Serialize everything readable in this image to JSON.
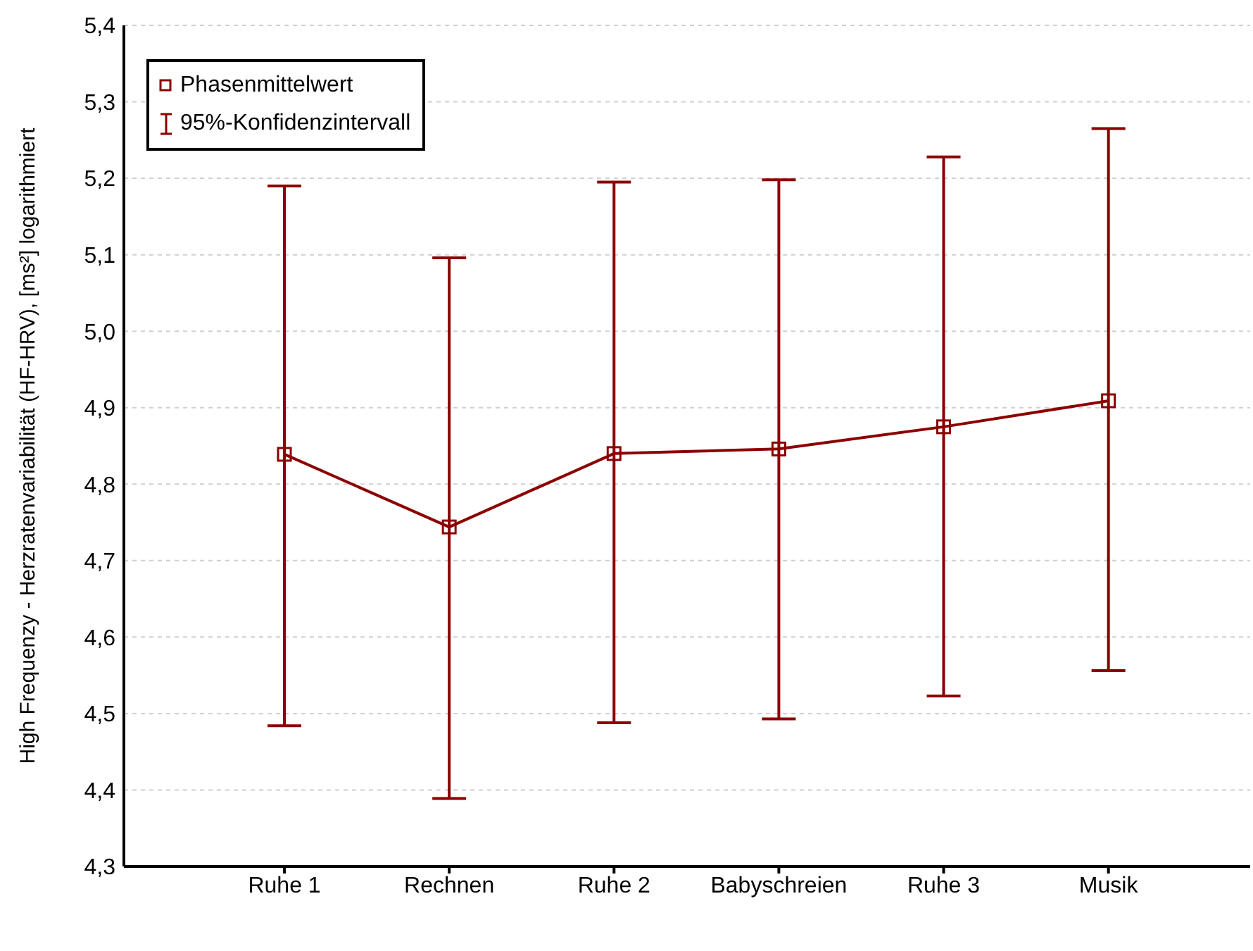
{
  "chart_data": {
    "type": "line",
    "ylabel": "High Frequenzy - Herzratenvariabilität (HF-HRV), [ms²] logarithmiert",
    "categories": [
      "Ruhe 1",
      "Rechnen",
      "Ruhe 2",
      "Babyschreien",
      "Ruhe 3",
      "Musik"
    ],
    "series": [
      {
        "name": "Phasenmittelwert",
        "color": "#8b0000",
        "values": [
          4.839,
          4.744,
          4.84,
          4.846,
          4.875,
          4.909
        ],
        "errors": [
          [
            4.484,
            5.19
          ],
          [
            4.389,
            5.096
          ],
          [
            4.488,
            5.195
          ],
          [
            4.493,
            5.198
          ],
          [
            4.523,
            5.228
          ],
          [
            4.556,
            5.265
          ]
        ]
      }
    ],
    "annotations": [
      "95%-Konfidenzintervall"
    ],
    "ylim": [
      4.3,
      5.4
    ],
    "yticks": [
      {
        "value": 4.3,
        "label": "4,3"
      },
      {
        "value": 4.4,
        "label": "4,4"
      },
      {
        "value": 4.5,
        "label": "4,5"
      },
      {
        "value": 4.6,
        "label": "4,6"
      },
      {
        "value": 4.7,
        "label": "4,7"
      },
      {
        "value": 4.8,
        "label": "4,8"
      },
      {
        "value": 4.9,
        "label": "4,9"
      },
      {
        "value": 5.0,
        "label": "5,0"
      },
      {
        "value": 5.1,
        "label": "5,1"
      },
      {
        "value": 5.2,
        "label": "5,2"
      },
      {
        "value": 5.3,
        "label": "5,3"
      },
      {
        "value": 5.4,
        "label": "5,4"
      }
    ],
    "grid": "y",
    "legend": "top left",
    "marker": "square",
    "line_style": "solid"
  }
}
